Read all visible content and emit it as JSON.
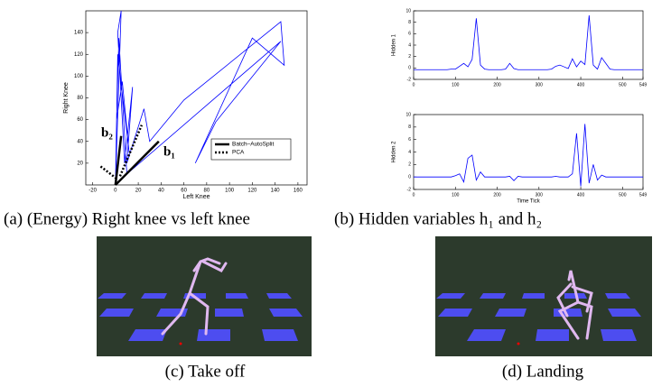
{
  "chart_data": [
    {
      "type": "line",
      "xlabel": "Left Knee",
      "ylabel": "Right Knee",
      "xlim": [
        -26,
        168
      ],
      "ylim": [
        0,
        160
      ],
      "xticks": [
        -20,
        0,
        20,
        40,
        60,
        80,
        100,
        120,
        140,
        160
      ],
      "yticks": [
        20,
        40,
        60,
        80,
        100,
        120,
        140
      ],
      "annotations": [
        "b₂",
        "b₁"
      ],
      "series": [
        {
          "color": "#0000ff",
          "x": [
            0,
            5,
            2,
            8,
            15,
            10,
            25,
            30,
            60,
            145,
            148,
            120,
            70,
            88,
            145,
            10,
            3,
            1,
            6,
            12,
            2,
            0
          ],
          "values": [
            0,
            160,
            140,
            20,
            90,
            20,
            70,
            40,
            78,
            150,
            110,
            135,
            20,
            58,
            132,
            10,
            135,
            60,
            95,
            30,
            120,
            0
          ]
        },
        {
          "name": "Batch–AutoSplit",
          "color": "#000000",
          "style": "solid",
          "x": [
            0,
            38,
            20,
            0,
            5
          ],
          "values": [
            0,
            40,
            null,
            0,
            45
          ]
        },
        {
          "name": "PCA",
          "color": "#000000",
          "style": "dotted",
          "x": [
            -13,
            2,
            3,
            4,
            23
          ],
          "values": [
            17,
            5,
            null,
            8,
            55
          ]
        }
      ]
    },
    {
      "type": "line",
      "ylabel": "Hidden 1",
      "xlim": [
        0,
        549
      ],
      "ylim": [
        -2,
        10
      ],
      "xticks": [
        0,
        100,
        200,
        300,
        400,
        500,
        549
      ],
      "yticks": [
        -2,
        0,
        2,
        4,
        6,
        8,
        10
      ],
      "x": [
        0,
        10,
        20,
        30,
        40,
        50,
        60,
        70,
        80,
        90,
        100,
        110,
        120,
        130,
        140,
        150,
        160,
        170,
        180,
        190,
        200,
        210,
        220,
        230,
        240,
        250,
        260,
        270,
        280,
        290,
        300,
        310,
        320,
        330,
        340,
        350,
        360,
        370,
        380,
        390,
        400,
        410,
        420,
        430,
        440,
        450,
        460,
        470,
        480,
        490,
        500,
        510,
        520,
        530,
        540,
        549
      ],
      "series": [
        {
          "color": "#0000ff",
          "values": [
            -0.3,
            -0.3,
            -0.3,
            -0.3,
            -0.3,
            -0.3,
            -0.3,
            -0.3,
            -0.3,
            -0.2,
            -0.2,
            0.3,
            0.8,
            0.2,
            1.5,
            8.7,
            0.5,
            -0.2,
            -0.3,
            -0.3,
            -0.3,
            -0.3,
            -0.2,
            0.8,
            -0.1,
            -0.3,
            -0.3,
            -0.3,
            -0.3,
            -0.3,
            -0.3,
            -0.3,
            -0.3,
            -0.2,
            0.3,
            0.5,
            0.2,
            -0.1,
            1.6,
            0.2,
            1.2,
            0.6,
            9.2,
            0.5,
            -0.2,
            1.8,
            0.8,
            -0.2,
            -0.3,
            -0.3,
            -0.3,
            -0.3,
            -0.3,
            -0.3,
            -0.3,
            -0.3
          ]
        }
      ]
    },
    {
      "type": "line",
      "xlabel": "Time Tick",
      "ylabel": "Hidden 2",
      "xlim": [
        0,
        549
      ],
      "ylim": [
        -2,
        10
      ],
      "xticks": [
        0,
        100,
        200,
        300,
        400,
        500,
        549
      ],
      "yticks": [
        -2,
        0,
        2,
        4,
        6,
        8,
        10
      ],
      "x": [
        0,
        10,
        20,
        30,
        40,
        50,
        60,
        70,
        80,
        90,
        100,
        110,
        120,
        130,
        140,
        150,
        160,
        170,
        180,
        190,
        200,
        210,
        220,
        230,
        240,
        250,
        260,
        270,
        280,
        290,
        300,
        310,
        320,
        330,
        340,
        350,
        360,
        370,
        380,
        390,
        400,
        410,
        420,
        430,
        440,
        450,
        460,
        470,
        480,
        490,
        500,
        510,
        520,
        530,
        540,
        549
      ],
      "series": [
        {
          "color": "#0000ff",
          "values": [
            0,
            0,
            0,
            0,
            0,
            0,
            0,
            0,
            0,
            0,
            0.2,
            0.5,
            -0.8,
            3,
            3.5,
            -0.5,
            0.8,
            0,
            0,
            0,
            0,
            0,
            0,
            0.1,
            -0.6,
            0.1,
            0,
            0,
            0,
            0,
            0,
            0,
            0,
            0,
            0.1,
            0,
            0,
            0,
            0.5,
            7,
            -1.5,
            8.5,
            -1,
            2,
            -0.5,
            0.3,
            0,
            0,
            0,
            0,
            0,
            0,
            0,
            0,
            0,
            0
          ]
        }
      ]
    }
  ],
  "captions": [
    "(a) (Energy) Right knee vs left knee",
    "(b) Hidden variables h₁ and h₂",
    "(c) Take off",
    "(d) Landing"
  ]
}
